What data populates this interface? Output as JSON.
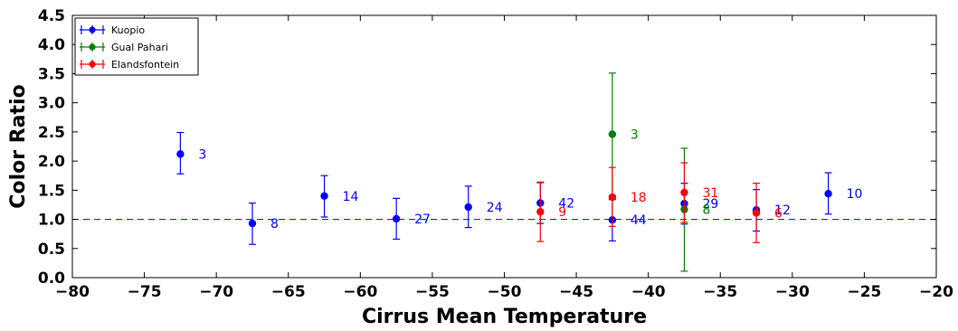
{
  "chart_data": {
    "type": "scatter",
    "xlabel": "Cirrus Mean Temperature",
    "ylabel": "Color Ratio",
    "xlim": [
      -80,
      -20
    ],
    "ylim": [
      0.0,
      4.5
    ],
    "x_ticks": [
      -80,
      -75,
      -70,
      -65,
      -60,
      -55,
      -50,
      -45,
      -40,
      -35,
      -30,
      -25,
      -20
    ],
    "x_tick_labels": [
      "−80",
      "−75",
      "−70",
      "−65",
      "−60",
      "−55",
      "−50",
      "−45",
      "−40",
      "−35",
      "−30",
      "−25",
      "−20"
    ],
    "y_ticks": [
      0.0,
      0.5,
      1.0,
      1.5,
      2.0,
      2.5,
      3.0,
      3.5,
      4.0,
      4.5
    ],
    "y_tick_labels": [
      "0.0",
      "0.5",
      "1.0",
      "1.5",
      "2.0",
      "2.5",
      "3.0",
      "3.5",
      "4.0",
      "4.5"
    ],
    "reference_line": {
      "y": 1.0,
      "style": "dashed",
      "color": "#800080"
    },
    "grid": false,
    "legend_position": "top-left",
    "series": [
      {
        "name": "Kuopio",
        "color": "#0000ff",
        "points": [
          {
            "x": -72.5,
            "y": 2.12,
            "yerr_low": 1.78,
            "yerr_high": 2.49,
            "label": "3"
          },
          {
            "x": -67.5,
            "y": 0.93,
            "yerr_low": 0.57,
            "yerr_high": 1.28,
            "label": "8"
          },
          {
            "x": -62.5,
            "y": 1.4,
            "yerr_low": 1.04,
            "yerr_high": 1.75,
            "label": "14"
          },
          {
            "x": -57.5,
            "y": 1.01,
            "yerr_low": 0.66,
            "yerr_high": 1.36,
            "label": "27"
          },
          {
            "x": -52.5,
            "y": 1.21,
            "yerr_low": 0.86,
            "yerr_high": 1.57,
            "label": "24"
          },
          {
            "x": -47.5,
            "y": 1.28,
            "yerr_low": 0.93,
            "yerr_high": 1.63,
            "label": "42"
          },
          {
            "x": -42.5,
            "y": 0.99,
            "yerr_low": 0.63,
            "yerr_high": 1.34,
            "label": "44"
          },
          {
            "x": -37.5,
            "y": 1.27,
            "yerr_low": 0.92,
            "yerr_high": 1.62,
            "label": "29"
          },
          {
            "x": -32.5,
            "y": 1.16,
            "yerr_low": 0.8,
            "yerr_high": 1.51,
            "label": "12"
          },
          {
            "x": -27.5,
            "y": 1.44,
            "yerr_low": 1.09,
            "yerr_high": 1.8,
            "label": "10"
          }
        ]
      },
      {
        "name": "Gual Pahari",
        "color": "#008000",
        "points": [
          {
            "x": -42.5,
            "y": 2.46,
            "yerr_low": 1.41,
            "yerr_high": 3.51,
            "label": "3"
          },
          {
            "x": -37.5,
            "y": 1.17,
            "yerr_low": 0.11,
            "yerr_high": 2.22,
            "label": "8"
          }
        ]
      },
      {
        "name": "Elandsfontein",
        "color": "#ff0000",
        "points": [
          {
            "x": -47.5,
            "y": 1.13,
            "yerr_low": 0.62,
            "yerr_high": 1.64,
            "label": "9"
          },
          {
            "x": -42.5,
            "y": 1.38,
            "yerr_low": 0.88,
            "yerr_high": 1.89,
            "label": "18"
          },
          {
            "x": -37.5,
            "y": 1.46,
            "yerr_low": 0.95,
            "yerr_high": 1.97,
            "label": "31"
          },
          {
            "x": -32.5,
            "y": 1.11,
            "yerr_low": 0.6,
            "yerr_high": 1.62,
            "label": "6"
          }
        ]
      }
    ]
  }
}
